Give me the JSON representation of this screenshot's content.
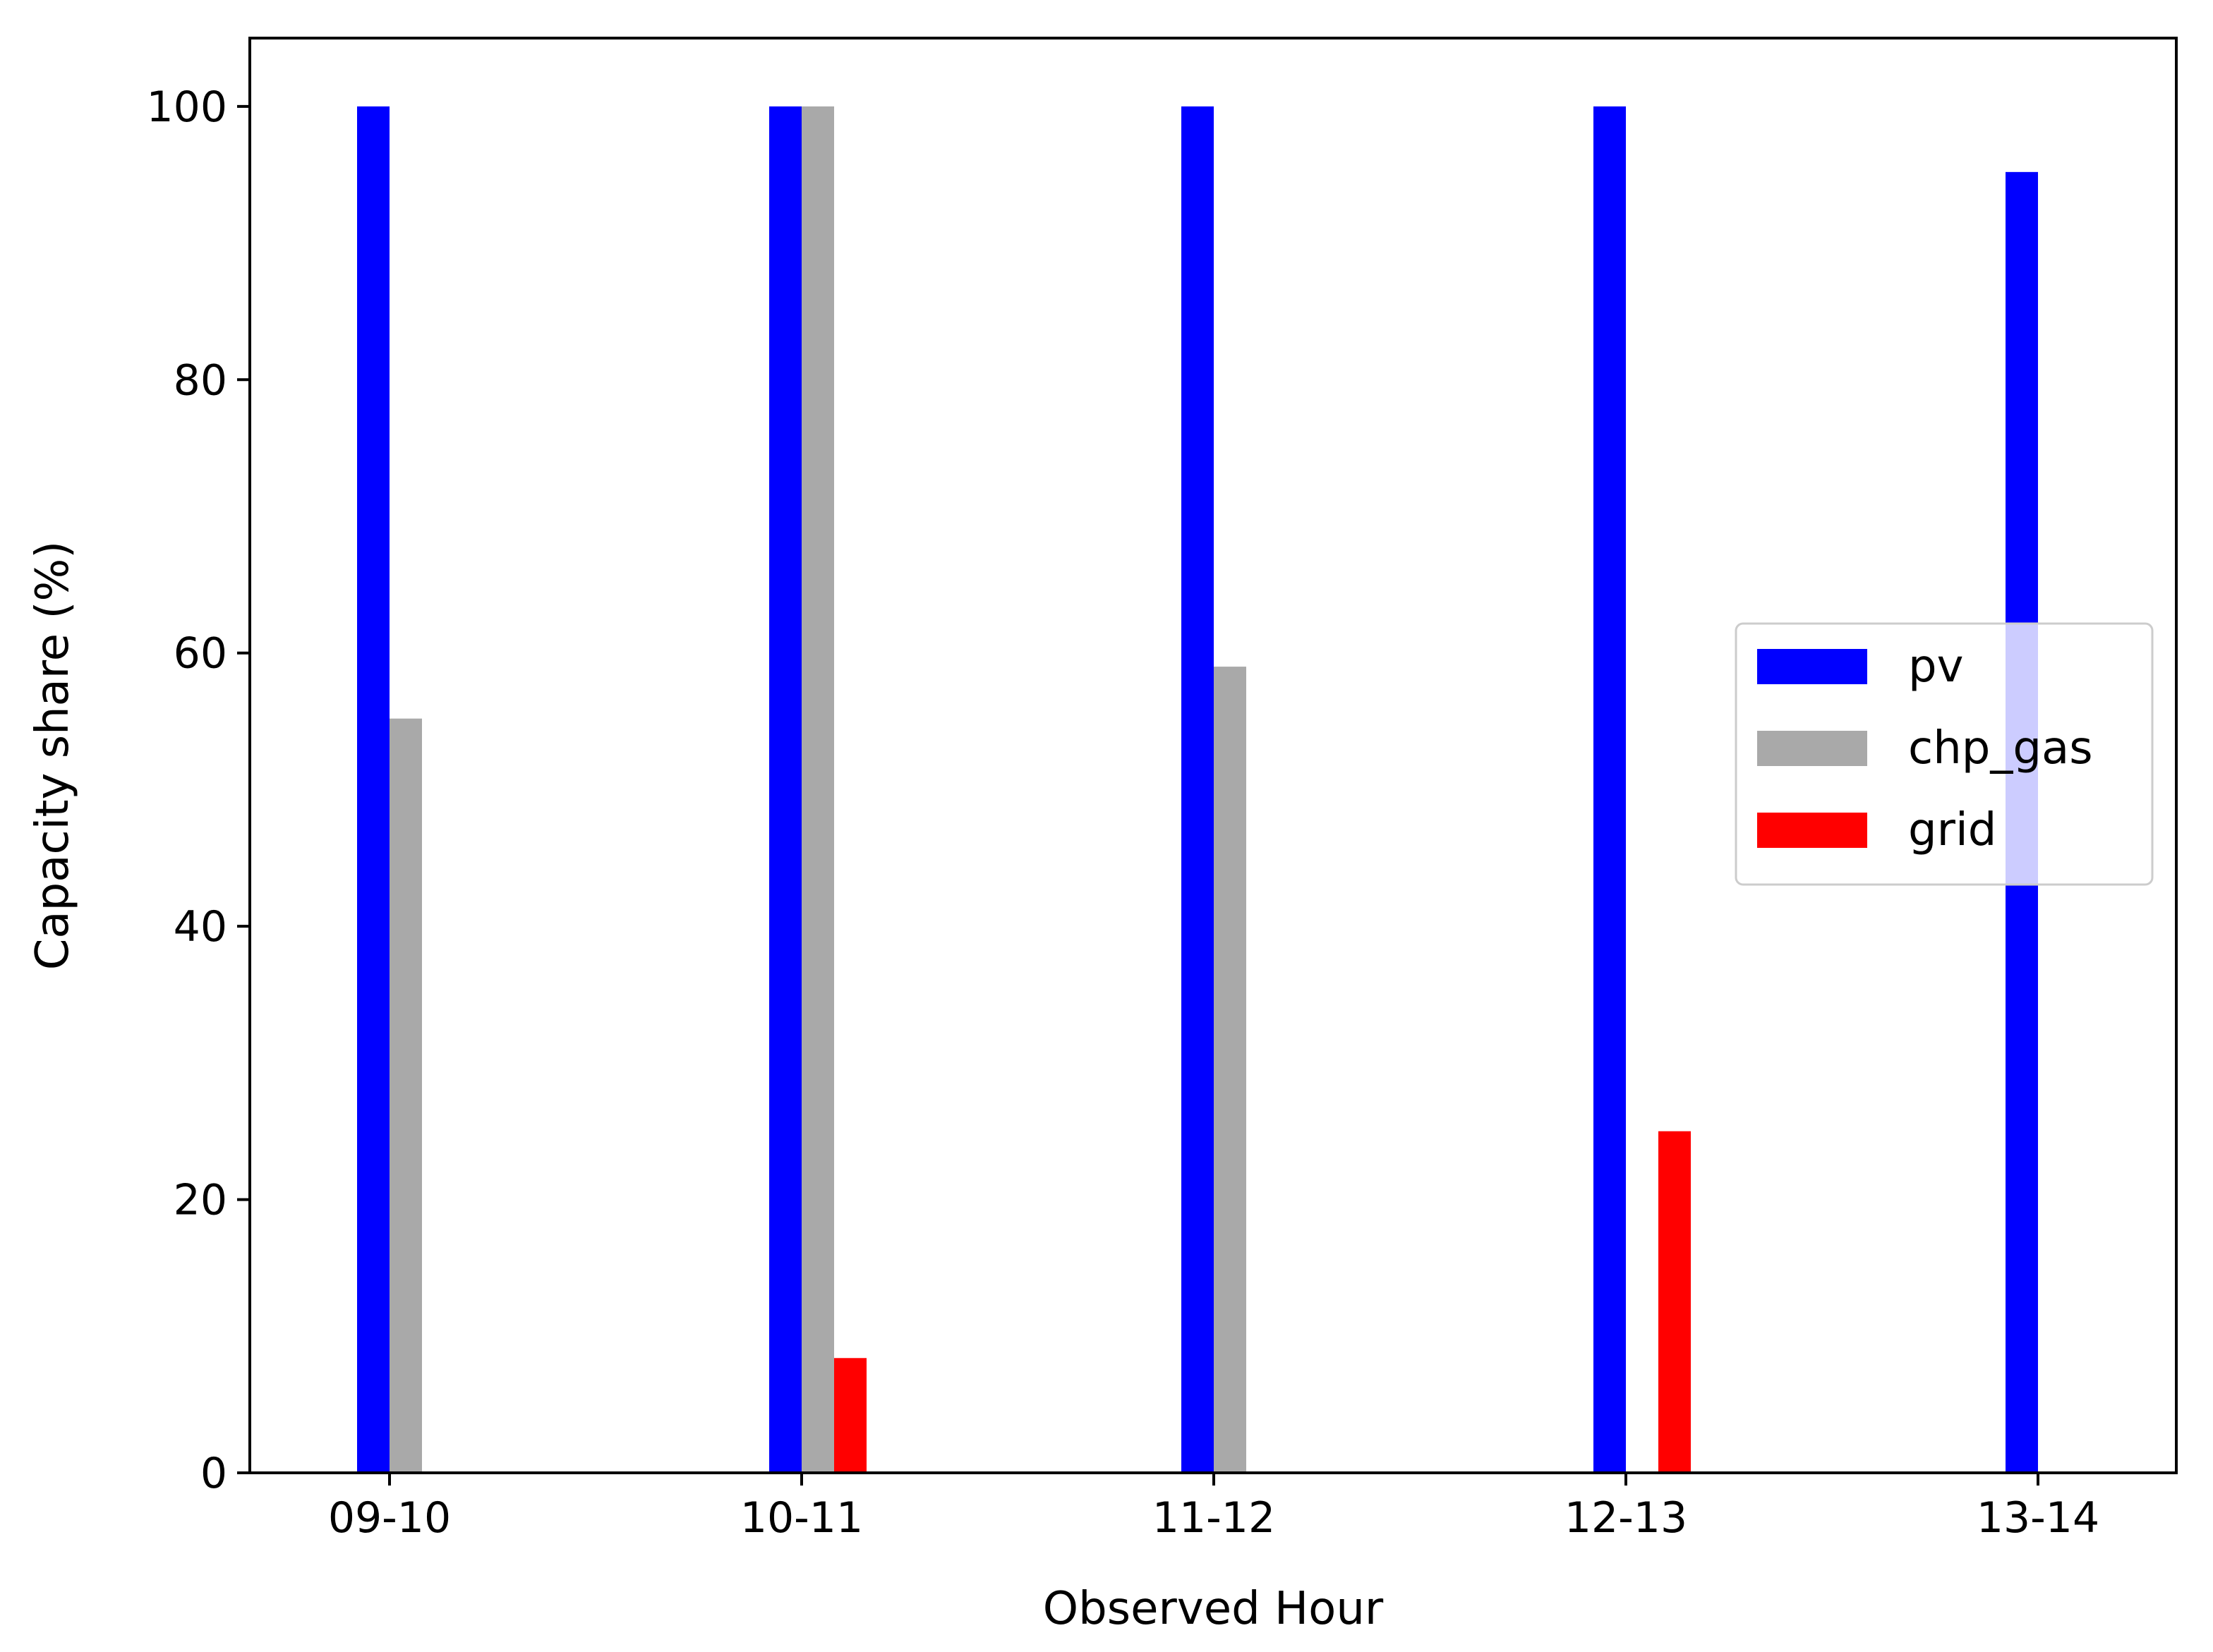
{
  "chart_data": {
    "type": "bar",
    "xlabel": "Observed Hour",
    "ylabel": "Capacity share (%)",
    "categories": [
      "09-10",
      "10-11",
      "11-12",
      "12-13",
      "13-14"
    ],
    "ylim": [
      0,
      105
    ],
    "yticks": [
      0,
      20,
      40,
      60,
      80,
      100
    ],
    "grid": false,
    "legend_position": "center-right",
    "series": [
      {
        "name": "pv",
        "color": "#0000ff",
        "values": [
          100,
          100,
          100,
          100,
          95.2
        ]
      },
      {
        "name": "chp_gas",
        "color": "#a9a9a9",
        "values": [
          55.2,
          100,
          59,
          0,
          0
        ]
      },
      {
        "name": "grid",
        "color": "#ff0000",
        "values": [
          0,
          8.4,
          0,
          25,
          0
        ]
      }
    ]
  }
}
